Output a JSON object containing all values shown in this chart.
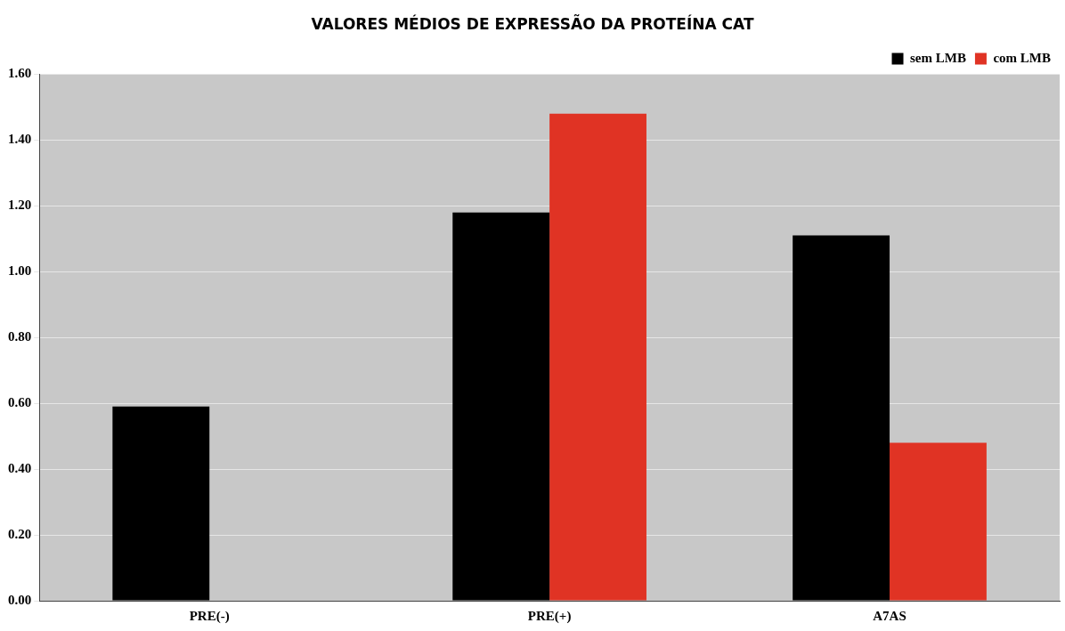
{
  "chart_data": {
    "type": "bar",
    "title": "VALORES MÉDIOS DE EXPRESSÃO DA PROTEÍNA CAT",
    "categories": [
      "PRE(-)",
      "PRE(+)",
      "A7AS"
    ],
    "series": [
      {
        "name": "sem LMB",
        "color": "#000000",
        "values": [
          0.59,
          1.18,
          1.11
        ]
      },
      {
        "name": "com LMB",
        "color": "#e03324",
        "values": [
          null,
          1.48,
          0.48
        ]
      }
    ],
    "ylim": [
      0,
      1.6
    ],
    "yticks": [
      {
        "value": 0,
        "label": "0.00"
      },
      {
        "value": 0.2,
        "label": "0.20"
      },
      {
        "value": 0.4,
        "label": "0.40"
      },
      {
        "value": 0.6,
        "label": "0.60"
      },
      {
        "value": 0.8,
        "label": "0.80"
      },
      {
        "value": 1,
        "label": "1.00"
      },
      {
        "value": 1.2,
        "label": "1.20"
      },
      {
        "value": 1.4,
        "label": "1.40"
      },
      {
        "value": 1.6,
        "label": "1.60"
      }
    ],
    "grid": "y",
    "legend": "top right"
  }
}
